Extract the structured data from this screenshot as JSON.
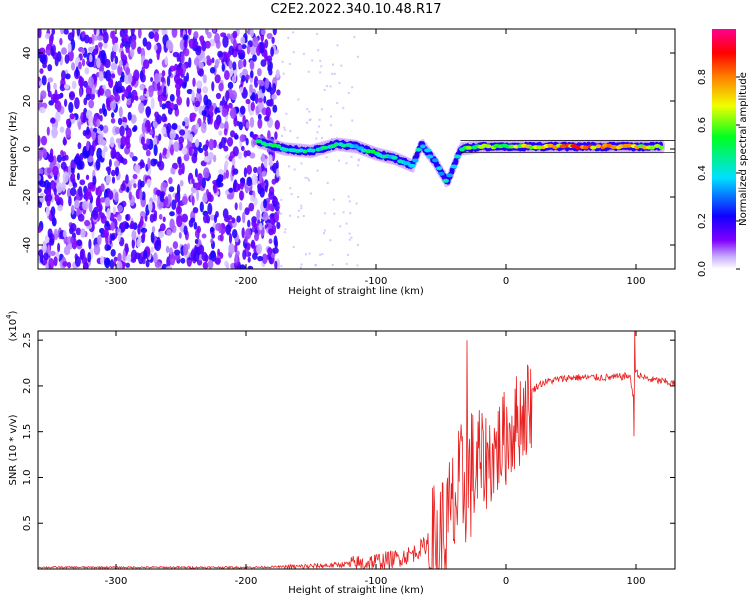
{
  "title": "C2E2.2022.340.10.48.R17",
  "chart_data": [
    {
      "type": "heatmap",
      "title": "C2E2.2022.340.10.48.R17",
      "xlabel": "Height of straight line (km)",
      "ylabel": "Frequency (Hz)",
      "xlim": [
        -360,
        130
      ],
      "ylim": [
        -50,
        50
      ],
      "xticks": [
        -300,
        -200,
        -100,
        0,
        100
      ],
      "yticks": [
        -40,
        -20,
        0,
        20,
        40
      ],
      "colorbar": {
        "label": "Normalized spectral amplitude",
        "range": [
          0,
          1
        ],
        "ticks": [
          "0.0",
          "0.2",
          "0.4",
          "0.6",
          "0.8"
        ],
        "colors": [
          "#ffffff",
          "#7f00ff",
          "#0000ff",
          "#00ffff",
          "#00ff00",
          "#ffff00",
          "#ff7f00",
          "#ff0000",
          "#ff0080"
        ]
      },
      "noise_region": {
        "x_from": -360,
        "x_to": -175,
        "amplitude": 0.15
      },
      "signal_track": [
        {
          "x": -190,
          "freq": 3,
          "amp": 0.45
        },
        {
          "x": -170,
          "freq": 0,
          "amp": 0.5
        },
        {
          "x": -150,
          "freq": -1,
          "amp": 0.45
        },
        {
          "x": -130,
          "freq": 2,
          "amp": 0.5
        },
        {
          "x": -115,
          "freq": 1,
          "amp": 0.45
        },
        {
          "x": -100,
          "freq": -2,
          "amp": 0.5
        },
        {
          "x": -85,
          "freq": -4,
          "amp": 0.45
        },
        {
          "x": -72,
          "freq": -7,
          "amp": 0.4
        },
        {
          "x": -65,
          "freq": 2,
          "amp": 0.45
        },
        {
          "x": -55,
          "freq": -5,
          "amp": 0.4
        },
        {
          "x": -45,
          "freq": -14,
          "amp": 0.4
        },
        {
          "x": -35,
          "freq": 0,
          "amp": 0.55
        },
        {
          "x": -20,
          "freq": 1,
          "amp": 0.6
        },
        {
          "x": 0,
          "freq": 1,
          "amp": 0.65
        },
        {
          "x": 20,
          "freq": 1,
          "amp": 0.7
        },
        {
          "x": 40,
          "freq": 1,
          "amp": 0.75
        },
        {
          "x": 60,
          "freq": 1,
          "amp": 0.85
        },
        {
          "x": 80,
          "freq": 1,
          "amp": 0.8
        },
        {
          "x": 100,
          "freq": 1,
          "amp": 0.7
        },
        {
          "x": 120,
          "freq": 1,
          "amp": 0.8
        }
      ]
    },
    {
      "type": "line",
      "xlabel": "Height of straight line (km)",
      "ylabel": "SNR (10 * v/v)",
      "multiplier_label": "(x10",
      "multiplier_exp": "4",
      "xlim": [
        -360,
        130
      ],
      "ylim": [
        0,
        2.6
      ],
      "xticks": [
        -300,
        -200,
        -100,
        0,
        100
      ],
      "yticks": [
        "0.5",
        "1.0",
        "1.5",
        "2.0",
        "2.5"
      ],
      "color": "#e82020",
      "series": [
        {
          "name": "SNR",
          "x": [
            -360,
            -300,
            -250,
            -200,
            -160,
            -130,
            -110,
            -100,
            -90,
            -80,
            -70,
            -60,
            -50,
            -45,
            -40,
            -35,
            -30,
            -25,
            -20,
            -15,
            -10,
            -5,
            0,
            5,
            10,
            15,
            20,
            25,
            30,
            40,
            50,
            60,
            70,
            80,
            90,
            95,
            98,
            100,
            102,
            110,
            120,
            130
          ],
          "y": [
            0.02,
            0.02,
            0.02,
            0.02,
            0.03,
            0.05,
            0.08,
            0.1,
            0.12,
            0.15,
            0.2,
            0.3,
            0.45,
            0.6,
            0.8,
            1.0,
            1.15,
            1.2,
            1.25,
            1.3,
            1.35,
            1.45,
            1.55,
            1.65,
            1.75,
            1.85,
            1.95,
            2.02,
            2.05,
            2.08,
            2.1,
            2.1,
            2.1,
            2.1,
            2.11,
            2.12,
            1.9,
            2.2,
            2.12,
            2.08,
            2.06,
            2.03
          ]
        }
      ],
      "noise": [
        {
          "from": -170,
          "to": -120,
          "amp": 0.03
        },
        {
          "from": -120,
          "to": -60,
          "amp": 0.1
        },
        {
          "from": -60,
          "to": -20,
          "amp": 0.75
        },
        {
          "from": -20,
          "to": 20,
          "amp": 0.55
        },
        {
          "from": 20,
          "to": 130,
          "amp": 0.04
        }
      ],
      "spikes": [
        {
          "x": -30,
          "y": 2.5
        },
        {
          "x": 99,
          "y": 2.6
        },
        {
          "x": 98.5,
          "y": 1.45
        }
      ]
    }
  ]
}
